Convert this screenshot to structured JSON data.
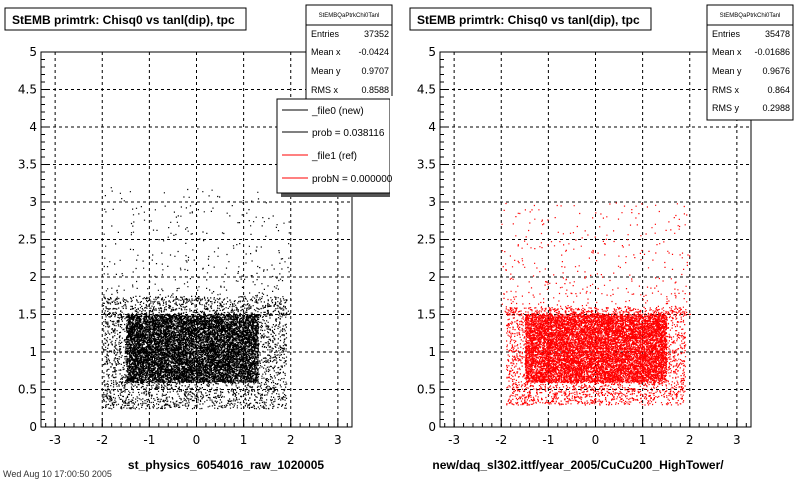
{
  "canvas_footer": "Wed Aug 10 17:00:50 2005",
  "chart_data": [
    {
      "type": "scatter",
      "title": "StEMB primtrk: Chisq0 vs tanl(dip), tpc",
      "xlabel": "st_physics_6054016_raw_1020005",
      "ylabel": "",
      "xlim": [
        -3.3,
        3.3
      ],
      "ylim": [
        0,
        5
      ],
      "xticks": [
        "-3",
        "-2",
        "-1",
        "0",
        "1",
        "2",
        "3"
      ],
      "yticks": [
        "0",
        "0.5",
        "1",
        "1.5",
        "2",
        "2.5",
        "3",
        "3.5",
        "4",
        "4.5",
        "5"
      ],
      "grid": true,
      "marker_color": "#000000",
      "distribution": {
        "core": {
          "x_range": [
            -1.5,
            1.3
          ],
          "y_range": [
            0.6,
            1.5
          ]
        },
        "outer": {
          "x_range": [
            -2.0,
            1.9
          ],
          "y_range": [
            0.25,
            1.75
          ]
        },
        "sparse_halo_y_max": 3.2
      },
      "stats": {
        "name": "StEMBQaPtrkChi0Tanl",
        "rows": [
          {
            "label": "Entries",
            "value": "37352"
          },
          {
            "label": "Mean x",
            "value": "-0.0424"
          },
          {
            "label": "Mean y",
            "value": "0.9707"
          },
          {
            "label": "RMS x",
            "value": "0.8588"
          }
        ]
      },
      "legend": {
        "position": "top-right",
        "entries": [
          {
            "label": "_file0 (new)",
            "color": "#000000"
          },
          {
            "label": "prob = 0.038116",
            "color": "#000000"
          },
          {
            "label": "_file1 (ref)",
            "color": "#ff0000"
          },
          {
            "label": "probN = 0.000000",
            "color": "#ff0000"
          }
        ]
      }
    },
    {
      "type": "scatter",
      "title": "StEMB primtrk: Chisq0 vs tanl(dip), tpc",
      "xlabel": "new/daq_sl302.ittf/year_2005/CuCu200_HighTower/",
      "ylabel": "",
      "xlim": [
        -3.3,
        3.3
      ],
      "ylim": [
        0,
        5
      ],
      "xticks": [
        "-3",
        "-2",
        "-1",
        "0",
        "1",
        "2",
        "3"
      ],
      "yticks": [
        "0",
        "0.5",
        "1",
        "1.5",
        "2",
        "2.5",
        "3",
        "3.5",
        "4",
        "4.5",
        "5"
      ],
      "grid": true,
      "marker_color": "#ff0000",
      "distribution": {
        "core": {
          "x_range": [
            -1.5,
            1.5
          ],
          "y_range": [
            0.6,
            1.5
          ]
        },
        "outer": {
          "x_range": [
            -1.9,
            1.9
          ],
          "y_range": [
            0.3,
            1.6
          ]
        },
        "sparse_halo_y_max": 3.0
      },
      "stats": {
        "name": "StEMBQaPtrkChi0Tanl",
        "rows": [
          {
            "label": "Entries",
            "value": "35478"
          },
          {
            "label": "Mean x",
            "value": "-0.01686"
          },
          {
            "label": "Mean y",
            "value": "0.9676"
          },
          {
            "label": "RMS x",
            "value": "0.864"
          },
          {
            "label": "RMS y",
            "value": "0.2988"
          }
        ]
      }
    }
  ]
}
